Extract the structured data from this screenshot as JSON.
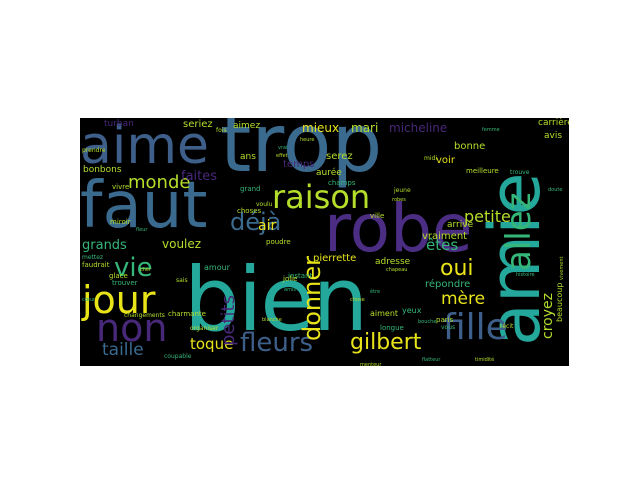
{
  "palette": {
    "teal": "#2a9d8f",
    "tealbright": "#25a89c",
    "blue": "#3b6a8f",
    "steel": "#3d5f8a",
    "purple": "#4b2e83",
    "violet": "#482878",
    "green": "#35b779",
    "lime": "#6ccd5a",
    "yellow": "#e8e419",
    "olive": "#b5de2b"
  },
  "words": {
    "bien": "bien",
    "trop": "trop",
    "faut": "faut",
    "aime": "aime",
    "amie": "amie",
    "robe": "robe",
    "raison": "raison",
    "jour": "jour",
    "non": "non",
    "fleurs": "fleurs",
    "fille": "fille",
    "allez": "allez",
    "vie": "vie",
    "monde": "monde",
    "donner": "donner",
    "deja": "déjà",
    "gilbert": "gilbert",
    "taille": "taille",
    "toque": "toque",
    "petits": "petits",
    "oui": "oui",
    "mere": "mère",
    "petite": "petite",
    "etes": "êtes",
    "croyez": "croyez",
    "faites": "faites",
    "grands": "grands",
    "voulez": "voulez",
    "air": "air",
    "mieux": "mieux",
    "mari": "mari",
    "micheline": "micheline",
    "serez": "serez",
    "temps": "temps",
    "pierrette": "pierrette",
    "adresse": "adresse",
    "repondre": "répondre",
    "vraiment": "vraiment",
    "voir": "voir",
    "bonne": "bonne",
    "seriez": "seriez",
    "turban": "turban",
    "bonbons": "bonbons",
    "avis": "avis",
    "carriere": "carrière",
    "aimez": "aimez",
    "ans": "ans",
    "aurez": "aurée",
    "champs": "champs",
    "arrive": "arrivé",
    "aiment": "aiment",
    "yeux": "yeux",
    "beaucoup": "beaucoup",
    "amour": "amour",
    "poudre": "poudre",
    "instant": "instant",
    "choses": "choses",
    "grand": "grand",
    "ville": "ville",
    "longue": "longue",
    "jolie": "jolie",
    "paris": "paris",
    "vous": "vous",
    "glace": "glace",
    "faudrait": "faudrait",
    "mettez": "mettez",
    "vivre": "vivre",
    "miroir": "miroir",
    "trouver": "trouver",
    "changements": "changements",
    "charmante": "charmante",
    "coupable": "coupable",
    "meilleure": "meilleure",
    "trouve": "trouve",
    "jeune": "jeune",
    "midi": "midi",
    "fois": "fois",
    "recit": "récit",
    "timidite": "timidité",
    "flatteur": "flatteur",
    "histoire": "histoire",
    "sais": "sais",
    "menteur": "menteur",
    "prendre": "prendre",
    "voulu": "voulu",
    "organiser": "organiser",
    "fleur": "fleur",
    "chose": "chose",
    "etre": "être",
    "cher": "cher",
    "amis": "amis",
    "blanche": "blanche",
    "bouche": "bouche",
    "chapeau": "chapeau",
    "doute": "doute",
    "vivement": "vivement",
    "coeur": "cœur",
    "heure": "heure",
    "vrai": "vrai",
    "robes": "robes",
    "femme": "femme",
    "effet": "effet"
  }
}
